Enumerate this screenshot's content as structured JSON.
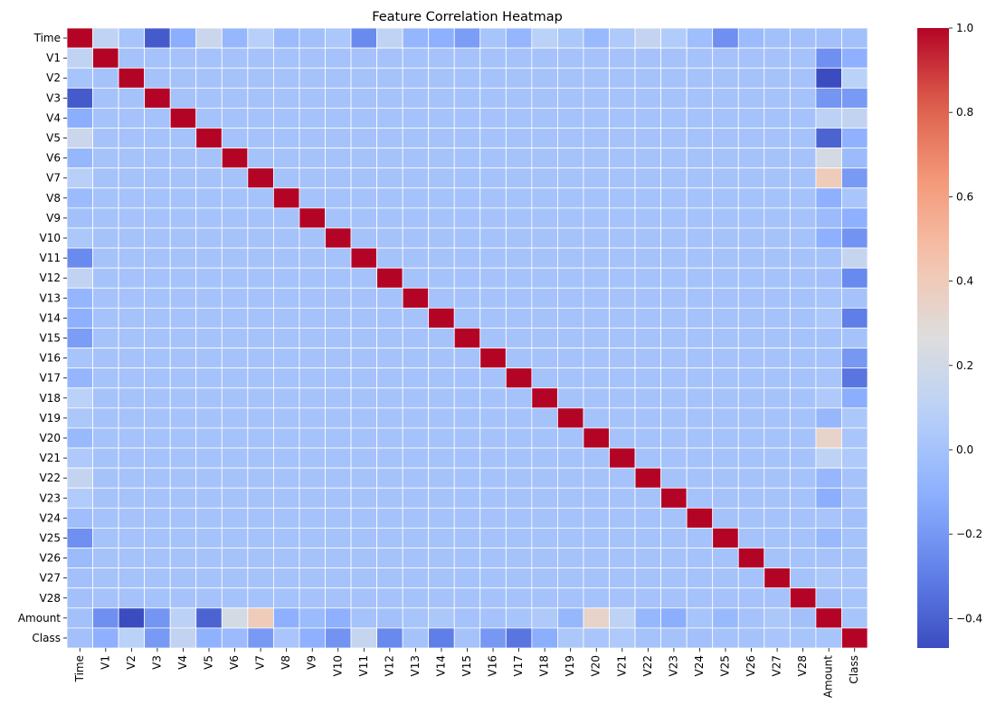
{
  "chart_data": {
    "type": "heatmap",
    "title": "Feature Correlation Heatmap",
    "xlabel": "",
    "ylabel": "",
    "grid": true,
    "colormap": "coolwarm",
    "vmin": -0.47,
    "vmax": 1.0,
    "legend_placement": "right",
    "colorbar": {
      "ticks": [
        1.0,
        0.8,
        0.6,
        0.4,
        0.2,
        0.0,
        -0.2,
        -0.4
      ],
      "tick_labels": [
        "1.0",
        "0.8",
        "0.6",
        "0.4",
        "0.2",
        "0.0",
        "−0.2",
        "−0.4"
      ]
    },
    "labels": [
      "Time",
      "V1",
      "V2",
      "V3",
      "V4",
      "V5",
      "V6",
      "V7",
      "V8",
      "V9",
      "V10",
      "V11",
      "V12",
      "V13",
      "V14",
      "V15",
      "V16",
      "V17",
      "V18",
      "V19",
      "V20",
      "V21",
      "V22",
      "V23",
      "V24",
      "V25",
      "V26",
      "V27",
      "V28",
      "Amount",
      "Class"
    ],
    "matrix": [
      [
        1.0,
        0.12,
        0.01,
        -0.42,
        -0.11,
        0.17,
        -0.06,
        0.08,
        -0.04,
        -0.01,
        0.03,
        -0.25,
        0.12,
        -0.07,
        -0.1,
        -0.18,
        0.01,
        -0.07,
        0.09,
        0.03,
        -0.05,
        0.04,
        0.14,
        0.05,
        -0.02,
        -0.23,
        -0.04,
        -0.01,
        -0.01,
        -0.01,
        -0.01
      ],
      [
        0.12,
        1.0,
        0.0,
        0.0,
        0.0,
        0.0,
        0.0,
        0.0,
        0.0,
        0.0,
        0.0,
        0.0,
        0.0,
        0.0,
        0.0,
        0.0,
        0.0,
        0.0,
        0.0,
        0.0,
        0.0,
        0.0,
        0.0,
        0.0,
        0.0,
        0.0,
        0.0,
        0.0,
        0.0,
        -0.23,
        -0.1
      ],
      [
        0.01,
        0.0,
        1.0,
        0.0,
        0.0,
        0.0,
        0.0,
        0.0,
        0.0,
        0.0,
        0.0,
        0.0,
        0.0,
        0.0,
        0.0,
        0.0,
        0.0,
        0.0,
        0.0,
        0.0,
        0.0,
        0.0,
        0.0,
        0.0,
        0.0,
        0.0,
        0.0,
        0.0,
        0.0,
        -0.53,
        0.09
      ],
      [
        -0.42,
        0.0,
        0.0,
        1.0,
        0.0,
        0.0,
        0.0,
        0.0,
        0.0,
        0.0,
        0.0,
        0.0,
        0.0,
        0.0,
        0.0,
        0.0,
        0.0,
        0.0,
        0.0,
        0.0,
        0.0,
        0.0,
        0.0,
        0.0,
        0.0,
        0.0,
        0.0,
        0.0,
        0.0,
        -0.21,
        -0.19
      ],
      [
        -0.11,
        0.0,
        0.0,
        0.0,
        1.0,
        0.0,
        0.0,
        0.0,
        0.0,
        0.0,
        0.0,
        0.0,
        0.0,
        0.0,
        0.0,
        0.0,
        0.0,
        0.0,
        0.0,
        0.0,
        0.0,
        0.0,
        0.0,
        0.0,
        0.0,
        0.0,
        0.0,
        0.0,
        0.0,
        0.1,
        0.13
      ],
      [
        0.17,
        0.0,
        0.0,
        0.0,
        0.0,
        1.0,
        0.0,
        0.0,
        0.0,
        0.0,
        0.0,
        0.0,
        0.0,
        0.0,
        0.0,
        0.0,
        0.0,
        0.0,
        0.0,
        0.0,
        0.0,
        0.0,
        0.0,
        0.0,
        0.0,
        0.0,
        0.0,
        0.0,
        0.0,
        -0.39,
        -0.09
      ],
      [
        -0.06,
        0.0,
        0.0,
        0.0,
        0.0,
        0.0,
        1.0,
        0.0,
        0.0,
        0.0,
        0.0,
        0.0,
        0.0,
        0.0,
        0.0,
        0.0,
        0.0,
        0.0,
        0.0,
        0.0,
        0.0,
        0.0,
        0.0,
        0.0,
        0.0,
        0.0,
        0.0,
        0.0,
        0.0,
        0.22,
        -0.04
      ],
      [
        0.08,
        0.0,
        0.0,
        0.0,
        0.0,
        0.0,
        0.0,
        1.0,
        0.0,
        0.0,
        0.0,
        0.0,
        0.0,
        0.0,
        0.0,
        0.0,
        0.0,
        0.0,
        0.0,
        0.0,
        0.0,
        0.0,
        0.0,
        0.0,
        0.0,
        0.0,
        0.0,
        0.0,
        0.0,
        0.4,
        -0.19
      ],
      [
        -0.04,
        0.0,
        0.0,
        0.0,
        0.0,
        0.0,
        0.0,
        0.0,
        1.0,
        0.0,
        0.0,
        0.0,
        0.0,
        0.0,
        0.0,
        0.0,
        0.0,
        0.0,
        0.0,
        0.0,
        0.0,
        0.0,
        0.0,
        0.0,
        0.0,
        0.0,
        0.0,
        0.0,
        0.0,
        -0.1,
        0.02
      ],
      [
        -0.01,
        0.0,
        0.0,
        0.0,
        0.0,
        0.0,
        0.0,
        0.0,
        0.0,
        1.0,
        0.0,
        0.0,
        0.0,
        0.0,
        0.0,
        0.0,
        0.0,
        0.0,
        0.0,
        0.0,
        0.0,
        0.0,
        0.0,
        0.0,
        0.0,
        0.0,
        0.0,
        0.0,
        0.0,
        -0.04,
        -0.1
      ],
      [
        0.03,
        0.0,
        0.0,
        0.0,
        0.0,
        0.0,
        0.0,
        0.0,
        0.0,
        0.0,
        1.0,
        0.0,
        0.0,
        0.0,
        0.0,
        0.0,
        0.0,
        0.0,
        0.0,
        0.0,
        0.0,
        0.0,
        0.0,
        0.0,
        0.0,
        0.0,
        0.0,
        0.0,
        0.0,
        -0.1,
        -0.22
      ],
      [
        -0.25,
        0.0,
        0.0,
        0.0,
        0.0,
        0.0,
        0.0,
        0.0,
        0.0,
        0.0,
        0.0,
        1.0,
        0.0,
        0.0,
        0.0,
        0.0,
        0.0,
        0.0,
        0.0,
        0.0,
        0.0,
        0.0,
        0.0,
        0.0,
        0.0,
        0.0,
        0.0,
        0.0,
        0.0,
        0.0,
        0.15
      ],
      [
        0.12,
        0.0,
        0.0,
        0.0,
        0.0,
        0.0,
        0.0,
        0.0,
        0.0,
        0.0,
        0.0,
        0.0,
        1.0,
        0.0,
        0.0,
        0.0,
        0.0,
        0.0,
        0.0,
        0.0,
        0.0,
        0.0,
        0.0,
        0.0,
        0.0,
        0.0,
        0.0,
        0.0,
        0.0,
        -0.01,
        -0.26
      ],
      [
        -0.07,
        0.0,
        0.0,
        0.0,
        0.0,
        0.0,
        0.0,
        0.0,
        0.0,
        0.0,
        0.0,
        0.0,
        0.0,
        1.0,
        0.0,
        0.0,
        0.0,
        0.0,
        0.0,
        0.0,
        0.0,
        0.0,
        0.0,
        0.0,
        0.0,
        0.0,
        0.0,
        0.0,
        0.0,
        0.01,
        -0.0
      ],
      [
        -0.1,
        0.0,
        0.0,
        0.0,
        0.0,
        0.0,
        0.0,
        0.0,
        0.0,
        0.0,
        0.0,
        0.0,
        0.0,
        0.0,
        1.0,
        0.0,
        0.0,
        0.0,
        0.0,
        0.0,
        0.0,
        0.0,
        0.0,
        0.0,
        0.0,
        0.0,
        0.0,
        0.0,
        0.0,
        0.03,
        -0.3
      ],
      [
        -0.18,
        0.0,
        0.0,
        0.0,
        0.0,
        0.0,
        0.0,
        0.0,
        0.0,
        0.0,
        0.0,
        0.0,
        0.0,
        0.0,
        0.0,
        1.0,
        0.0,
        0.0,
        0.0,
        0.0,
        0.0,
        0.0,
        0.0,
        0.0,
        0.0,
        0.0,
        0.0,
        0.0,
        0.0,
        -0.0,
        -0.0
      ],
      [
        0.01,
        0.0,
        0.0,
        0.0,
        0.0,
        0.0,
        0.0,
        0.0,
        0.0,
        0.0,
        0.0,
        0.0,
        0.0,
        0.0,
        0.0,
        0.0,
        1.0,
        0.0,
        0.0,
        0.0,
        0.0,
        0.0,
        0.0,
        0.0,
        0.0,
        0.0,
        0.0,
        0.0,
        0.0,
        -0.0,
        -0.2
      ],
      [
        -0.07,
        0.0,
        0.0,
        0.0,
        0.0,
        0.0,
        0.0,
        0.0,
        0.0,
        0.0,
        0.0,
        0.0,
        0.0,
        0.0,
        0.0,
        0.0,
        0.0,
        1.0,
        0.0,
        0.0,
        0.0,
        0.0,
        0.0,
        0.0,
        0.0,
        0.0,
        0.0,
        0.0,
        0.0,
        0.01,
        -0.33
      ],
      [
        0.09,
        0.0,
        0.0,
        0.0,
        0.0,
        0.0,
        0.0,
        0.0,
        0.0,
        0.0,
        0.0,
        0.0,
        0.0,
        0.0,
        0.0,
        0.0,
        0.0,
        0.0,
        1.0,
        0.0,
        0.0,
        0.0,
        0.0,
        0.0,
        0.0,
        0.0,
        0.0,
        0.0,
        0.0,
        0.04,
        -0.11
      ],
      [
        0.03,
        0.0,
        0.0,
        0.0,
        0.0,
        0.0,
        0.0,
        0.0,
        0.0,
        0.0,
        0.0,
        0.0,
        0.0,
        0.0,
        0.0,
        0.0,
        0.0,
        0.0,
        0.0,
        1.0,
        0.0,
        0.0,
        0.0,
        0.0,
        0.0,
        0.0,
        0.0,
        0.0,
        0.0,
        -0.06,
        0.03
      ],
      [
        -0.05,
        0.0,
        0.0,
        0.0,
        0.0,
        0.0,
        0.0,
        0.0,
        0.0,
        0.0,
        0.0,
        0.0,
        0.0,
        0.0,
        0.0,
        0.0,
        0.0,
        0.0,
        0.0,
        0.0,
        1.0,
        0.0,
        0.0,
        0.0,
        0.0,
        0.0,
        0.0,
        0.0,
        0.0,
        0.34,
        0.02
      ],
      [
        0.04,
        0.0,
        0.0,
        0.0,
        0.0,
        0.0,
        0.0,
        0.0,
        0.0,
        0.0,
        0.0,
        0.0,
        0.0,
        0.0,
        0.0,
        0.0,
        0.0,
        0.0,
        0.0,
        0.0,
        0.0,
        1.0,
        0.0,
        0.0,
        0.0,
        0.0,
        0.0,
        0.0,
        0.0,
        0.11,
        0.04
      ],
      [
        0.14,
        0.0,
        0.0,
        0.0,
        0.0,
        0.0,
        0.0,
        0.0,
        0.0,
        0.0,
        0.0,
        0.0,
        0.0,
        0.0,
        0.0,
        0.0,
        0.0,
        0.0,
        0.0,
        0.0,
        0.0,
        0.0,
        1.0,
        0.0,
        0.0,
        0.0,
        0.0,
        0.0,
        0.0,
        -0.06,
        0.0
      ],
      [
        0.05,
        0.0,
        0.0,
        0.0,
        0.0,
        0.0,
        0.0,
        0.0,
        0.0,
        0.0,
        0.0,
        0.0,
        0.0,
        0.0,
        0.0,
        0.0,
        0.0,
        0.0,
        0.0,
        0.0,
        0.0,
        0.0,
        0.0,
        1.0,
        0.0,
        0.0,
        0.0,
        0.0,
        0.0,
        -0.11,
        -0.0
      ],
      [
        -0.02,
        0.0,
        0.0,
        0.0,
        0.0,
        0.0,
        0.0,
        0.0,
        0.0,
        0.0,
        0.0,
        0.0,
        0.0,
        0.0,
        0.0,
        0.0,
        0.0,
        0.0,
        0.0,
        0.0,
        0.0,
        0.0,
        0.0,
        0.0,
        1.0,
        0.0,
        0.0,
        0.0,
        0.0,
        0.01,
        -0.01
      ],
      [
        -0.23,
        0.0,
        0.0,
        0.0,
        0.0,
        0.0,
        0.0,
        0.0,
        0.0,
        0.0,
        0.0,
        0.0,
        0.0,
        0.0,
        0.0,
        0.0,
        0.0,
        0.0,
        0.0,
        0.0,
        0.0,
        0.0,
        0.0,
        0.0,
        0.0,
        1.0,
        0.0,
        0.0,
        0.0,
        -0.05,
        0.0
      ],
      [
        -0.04,
        0.0,
        0.0,
        0.0,
        0.0,
        0.0,
        0.0,
        0.0,
        0.0,
        0.0,
        0.0,
        0.0,
        0.0,
        0.0,
        0.0,
        0.0,
        0.0,
        0.0,
        0.0,
        0.0,
        0.0,
        0.0,
        0.0,
        0.0,
        0.0,
        0.0,
        1.0,
        0.0,
        0.0,
        -0.0,
        0.0
      ],
      [
        -0.01,
        0.0,
        0.0,
        0.0,
        0.0,
        0.0,
        0.0,
        0.0,
        0.0,
        0.0,
        0.0,
        0.0,
        0.0,
        0.0,
        0.0,
        0.0,
        0.0,
        0.0,
        0.0,
        0.0,
        0.0,
        0.0,
        0.0,
        0.0,
        0.0,
        0.0,
        0.0,
        1.0,
        0.0,
        0.03,
        0.02
      ],
      [
        -0.01,
        0.0,
        0.0,
        0.0,
        0.0,
        0.0,
        0.0,
        0.0,
        0.0,
        0.0,
        0.0,
        0.0,
        0.0,
        0.0,
        0.0,
        0.0,
        0.0,
        0.0,
        0.0,
        0.0,
        0.0,
        0.0,
        0.0,
        0.0,
        0.0,
        0.0,
        0.0,
        0.0,
        1.0,
        -0.01,
        0.01
      ],
      [
        -0.01,
        -0.23,
        -0.53,
        -0.21,
        0.1,
        -0.39,
        0.22,
        0.4,
        -0.1,
        -0.04,
        -0.1,
        0.0,
        -0.01,
        0.01,
        0.03,
        -0.0,
        -0.0,
        0.01,
        0.04,
        -0.06,
        0.34,
        0.11,
        -0.06,
        -0.11,
        0.01,
        -0.05,
        -0.0,
        0.03,
        -0.01,
        1.0,
        0.01
      ],
      [
        -0.01,
        -0.1,
        0.09,
        -0.19,
        0.13,
        -0.09,
        -0.04,
        -0.19,
        0.02,
        -0.1,
        -0.22,
        0.15,
        -0.26,
        -0.0,
        -0.3,
        -0.0,
        -0.2,
        -0.33,
        -0.11,
        0.03,
        0.02,
        0.04,
        0.0,
        -0.0,
        -0.01,
        0.0,
        0.0,
        0.02,
        0.01,
        0.01,
        1.0
      ]
    ],
    "offdiag_fill": [
      [
        null,
        0.12,
        0.01,
        -0.42,
        -0.11,
        0.17,
        -0.06,
        0.08,
        -0.04,
        -0.01,
        0.03,
        -0.25,
        0.12,
        -0.07,
        -0.1,
        -0.18,
        0.01,
        -0.07,
        0.09,
        0.03,
        -0.05,
        0.04,
        0.14,
        0.05,
        -0.02,
        -0.23,
        -0.04,
        -0.01,
        -0.01,
        -0.01,
        -0.01
      ]
    ]
  }
}
